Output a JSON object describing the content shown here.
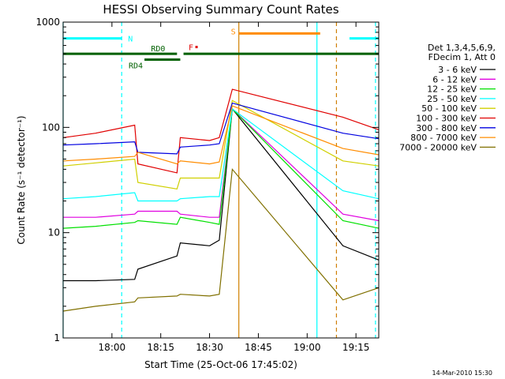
{
  "chart_data": {
    "type": "line",
    "title": "HESSI Observing Summary Count Rates",
    "xlabel": "Start Time (25-Oct-06 17:45:02)",
    "ylabel": "Count Rate (s⁻¹ detector⁻¹)",
    "yscale": "log",
    "ylim": [
      1,
      1000
    ],
    "xlim": [
      "17:45",
      "19:22"
    ],
    "x_ticks": [
      "18:00",
      "18:15",
      "18:30",
      "18:45",
      "19:00",
      "19:15"
    ],
    "y_ticks": [
      "1",
      "10",
      "100",
      "1000"
    ],
    "grid": false,
    "legend_position": "right",
    "legend_header": [
      "Det 1,3,4,5,6,9,",
      "FDecim 1, Att 0"
    ],
    "footer_stamp": "14-Mar-2010 15:30",
    "series": [
      {
        "name": "3 - 6 keV",
        "color": "#000000",
        "x": [
          "17:45",
          "17:55",
          "18:07",
          "18:08",
          "18:20",
          "18:21",
          "18:30",
          "18:33",
          "18:37",
          "19:11",
          "19:22"
        ],
        "y": [
          3.5,
          3.5,
          3.6,
          4.5,
          6.0,
          8.0,
          7.5,
          8.5,
          150,
          7.5,
          5.5
        ]
      },
      {
        "name": "6 - 12 keV",
        "color": "#e000e0",
        "x": [
          "17:45",
          "17:55",
          "18:07",
          "18:08",
          "18:20",
          "18:21",
          "18:30",
          "18:33",
          "18:37",
          "19:11",
          "19:22"
        ],
        "y": [
          14,
          14,
          15,
          16,
          16,
          15,
          14,
          14,
          150,
          15,
          13
        ]
      },
      {
        "name": "12 - 25 keV",
        "color": "#00e000",
        "x": [
          "17:45",
          "17:55",
          "18:07",
          "18:08",
          "18:20",
          "18:21",
          "18:30",
          "18:33",
          "18:37",
          "19:11",
          "19:22"
        ],
        "y": [
          11,
          11.5,
          12.5,
          13,
          12,
          14,
          12.5,
          12,
          150,
          13,
          11
        ]
      },
      {
        "name": "25 - 50 keV",
        "color": "#00ffff",
        "x": [
          "17:45",
          "17:55",
          "18:07",
          "18:08",
          "18:20",
          "18:21",
          "18:30",
          "18:33",
          "18:37",
          "19:11",
          "19:22"
        ],
        "y": [
          21,
          22,
          24,
          20,
          20,
          21,
          22,
          22,
          150,
          25,
          21
        ]
      },
      {
        "name": "50 - 100 keV",
        "color": "#d0d000",
        "x": [
          "17:45",
          "17:55",
          "18:07",
          "18:08",
          "18:20",
          "18:21",
          "18:30",
          "18:33",
          "18:37",
          "19:11",
          "19:22"
        ],
        "y": [
          43,
          46,
          50,
          30,
          26,
          33,
          33,
          33,
          180,
          48,
          43
        ]
      },
      {
        "name": "100 - 300 keV",
        "color": "#e00000",
        "x": [
          "17:45",
          "17:55",
          "18:07",
          "18:08",
          "18:20",
          "18:21",
          "18:30",
          "18:33",
          "18:37",
          "19:11",
          "19:22"
        ],
        "y": [
          80,
          88,
          105,
          45,
          37,
          80,
          75,
          80,
          230,
          125,
          95
        ]
      },
      {
        "name": "300 - 800 keV",
        "color": "#0000e0",
        "x": [
          "17:45",
          "17:55",
          "18:07",
          "18:08",
          "18:20",
          "18:21",
          "18:30",
          "18:33",
          "18:37",
          "19:11",
          "19:22"
        ],
        "y": [
          68,
          70,
          73,
          58,
          56,
          65,
          68,
          70,
          170,
          88,
          78
        ]
      },
      {
        "name": "800 - 7000 keV",
        "color": "#ff8c00",
        "x": [
          "17:45",
          "17:55",
          "18:07",
          "18:08",
          "18:20",
          "18:21",
          "18:30",
          "18:33",
          "18:37",
          "19:11",
          "19:22"
        ],
        "y": [
          48,
          50,
          53,
          58,
          45,
          48,
          45,
          47,
          160,
          63,
          55
        ]
      },
      {
        "name": "7000 - 20000 keV",
        "color": "#807000",
        "x": [
          "17:45",
          "17:55",
          "18:07",
          "18:08",
          "18:20",
          "18:21",
          "18:30",
          "18:33",
          "18:37",
          "19:11",
          "19:22"
        ],
        "y": [
          1.8,
          2.0,
          2.2,
          2.4,
          2.5,
          2.6,
          2.5,
          2.6,
          40,
          2.3,
          3.0
        ]
      }
    ],
    "status_bars": [
      {
        "label": "N",
        "label_color": "#00ffff",
        "color": "#00ffff",
        "y": 700,
        "ranges": [
          [
            "17:45",
            "18:03"
          ],
          [
            "19:13",
            "19:22"
          ]
        ]
      },
      {
        "label": "S",
        "label_color": "#ff8c00",
        "color": "#ff8c00",
        "y": 780,
        "ranges": [
          [
            "18:39",
            "19:04"
          ]
        ]
      },
      {
        "label": "F",
        "label_color": "#e00000",
        "color": "#e00000",
        "y": 580,
        "ranges": [
          [
            "18:26",
            "18:26"
          ]
        ]
      },
      {
        "label": "RD0",
        "label_color": "#006000",
        "color": "#006000",
        "y": 500,
        "ranges": [
          [
            "17:45",
            "18:20"
          ],
          [
            "18:22",
            "19:22"
          ]
        ]
      },
      {
        "label": "RD4",
        "label_color": "#006000",
        "color": "#006000",
        "y": 440,
        "ranges": [
          [
            "18:10",
            "18:21"
          ]
        ]
      }
    ],
    "vertical_markers": [
      {
        "name": "N",
        "x": "17:45",
        "color": "#00ffff",
        "style": "solid"
      },
      {
        "name": "N",
        "x": "18:03",
        "color": "#00ffff",
        "style": "dashed"
      },
      {
        "name": "S",
        "x": "18:39",
        "color": "#d08000",
        "style": "solid"
      },
      {
        "name": "N",
        "x": "19:03",
        "color": "#00ffff",
        "style": "solid"
      },
      {
        "name": "S",
        "x": "19:09",
        "color": "#d08000",
        "style": "dashed"
      },
      {
        "name": "N",
        "x": "19:21",
        "color": "#00ffff",
        "style": "dashed"
      }
    ]
  }
}
